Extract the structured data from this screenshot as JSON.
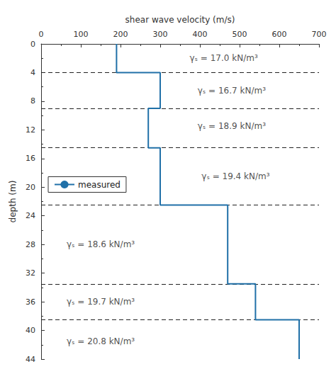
{
  "chart_data": {
    "type": "line",
    "xlabel": "shear wave velocity (m/s)",
    "ylabel": "depth (m)",
    "xlim": [
      0,
      700
    ],
    "ylim": [
      44,
      0
    ],
    "xticks": [
      0,
      100,
      200,
      300,
      400,
      500,
      600,
      700
    ],
    "yticks": [
      0,
      4,
      8,
      12,
      16,
      20,
      24,
      28,
      32,
      36,
      40,
      44
    ],
    "series": [
      {
        "name": "measured",
        "color": "#2070a8",
        "x": [
          190,
          190,
          300,
          300,
          270,
          270,
          300,
          300,
          470,
          470,
          540,
          540,
          650,
          650
        ],
        "values": [
          0,
          4,
          4,
          9,
          9,
          14.5,
          14.5,
          22.5,
          22.5,
          33.5,
          33.5,
          38.5,
          38.5,
          44
        ]
      }
    ],
    "hlines": [
      4,
      9,
      14.5,
      22.5,
      33.5,
      38.5
    ],
    "annotations": [
      {
        "text": "γₛ = 17.0 kN/m³",
        "x": 460,
        "y": 2.0
      },
      {
        "text": "γₛ = 16.7 kN/m³",
        "x": 480,
        "y": 6.5
      },
      {
        "text": "γₛ = 18.9 kN/m³",
        "x": 480,
        "y": 11.5
      },
      {
        "text": "γₛ = 19.4 kN/m³",
        "x": 490,
        "y": 18.5
      },
      {
        "text": "γₛ = 18.6 kN/m³",
        "x": 150,
        "y": 28.0
      },
      {
        "text": "γₛ = 19.7 kN/m³",
        "x": 150,
        "y": 36.0
      },
      {
        "text": "γₛ = 20.8 kN/m³",
        "x": 150,
        "y": 41.5
      }
    ],
    "legend": "left",
    "grid": false
  }
}
